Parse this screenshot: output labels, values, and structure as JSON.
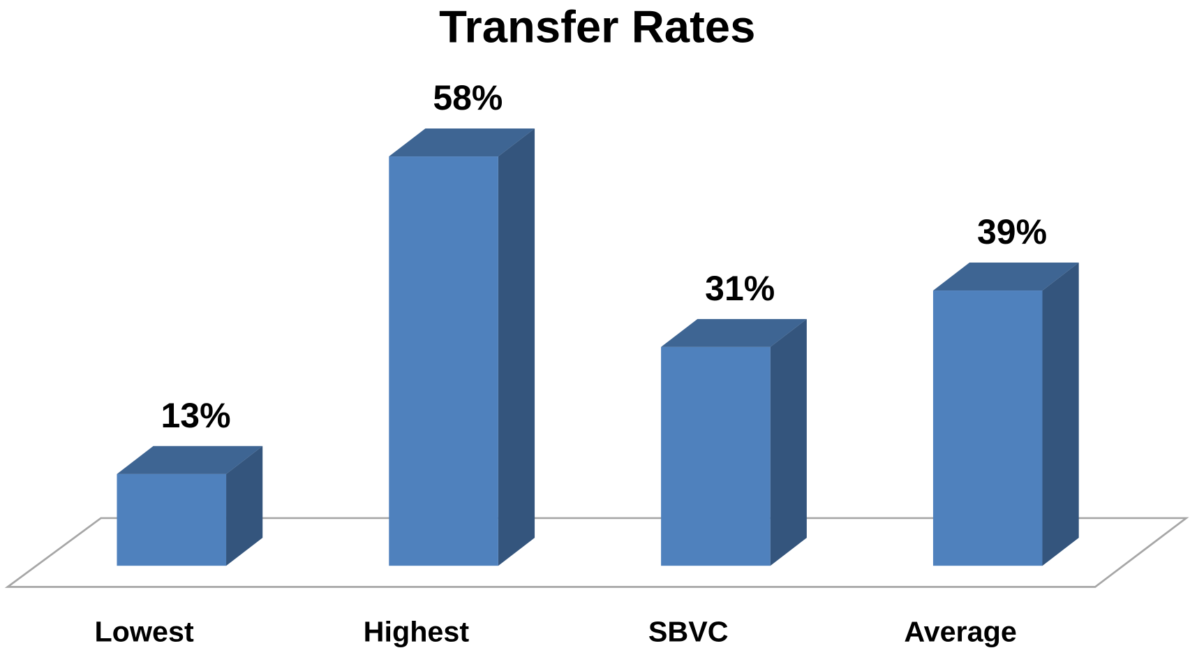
{
  "chart_data": {
    "type": "bar",
    "title": "Transfer Rates",
    "categories": [
      "Lowest",
      "Highest",
      "SBVC",
      "Average"
    ],
    "values": [
      13,
      58,
      31,
      39
    ],
    "value_labels": [
      "13%",
      "58%",
      "31%",
      "39%"
    ],
    "color": "#4f81bd"
  }
}
